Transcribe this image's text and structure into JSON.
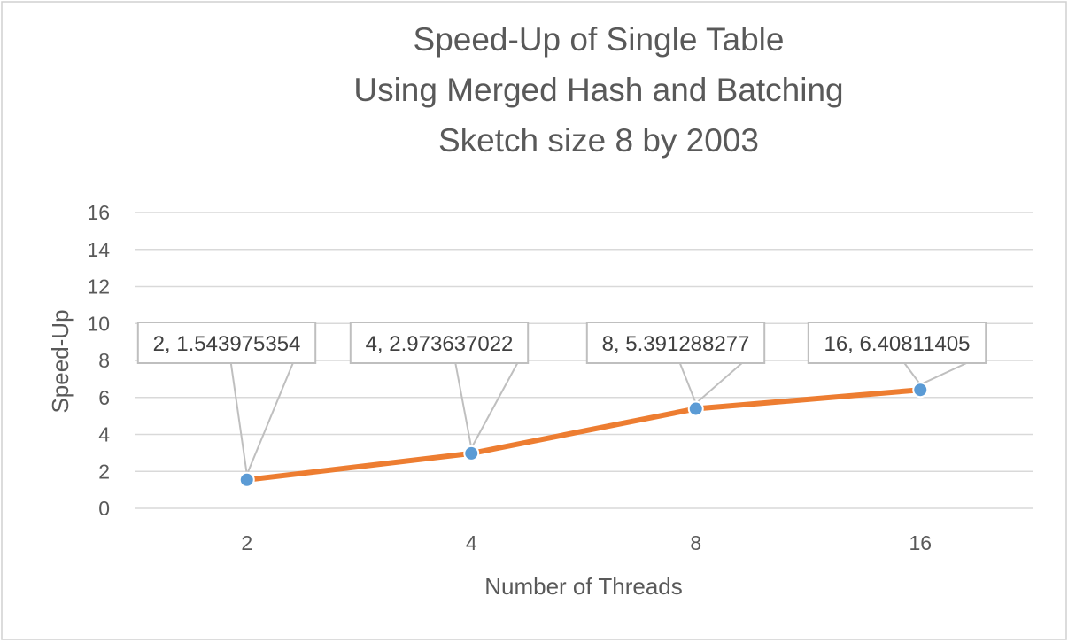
{
  "chart_data": {
    "type": "line",
    "title_lines": [
      "Speed-Up of Single Table",
      "Using Merged Hash and Batching",
      "Sketch size 8 by 2003"
    ],
    "xlabel": "Number of Threads",
    "ylabel": "Speed-Up",
    "categories": [
      "2",
      "4",
      "8",
      "16"
    ],
    "series": [
      {
        "values": [
          1.543975354,
          2.973637022,
          5.391288277,
          6.40811405
        ]
      }
    ],
    "data_labels": [
      "2, 1.543975354",
      "4, 2.973637022",
      "8, 5.391288277",
      "16, 6.40811405"
    ],
    "ylim": [
      0,
      16
    ],
    "yticks": [
      "0",
      "2",
      "4",
      "6",
      "8",
      "10",
      "12",
      "14",
      "16"
    ],
    "grid": true,
    "legend": "none",
    "colors": {
      "line": "#ed7d31",
      "marker": "#5b9bd5"
    }
  }
}
